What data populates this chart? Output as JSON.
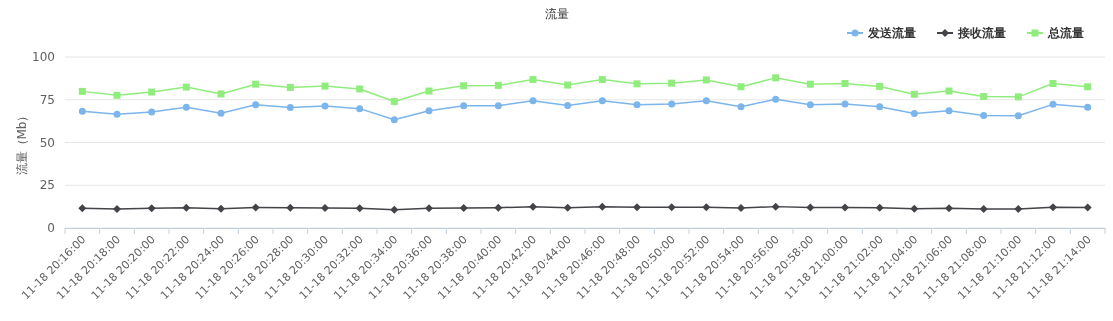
{
  "chart_data": {
    "type": "line",
    "title": "流量",
    "ylabel": "流量（Mb）",
    "categories": [
      "11-18 20:16:00",
      "11-18 20:18:00",
      "11-18 20:20:00",
      "11-18 20:22:00",
      "11-18 20:24:00",
      "11-18 20:26:00",
      "11-18 20:28:00",
      "11-18 20:30:00",
      "11-18 20:32:00",
      "11-18 20:34:00",
      "11-18 20:36:00",
      "11-18 20:38:00",
      "11-18 20:40:00",
      "11-18 20:42:00",
      "11-18 20:44:00",
      "11-18 20:46:00",
      "11-18 20:48:00",
      "11-18 20:50:00",
      "11-18 20:52:00",
      "11-18 20:54:00",
      "11-18 20:56:00",
      "11-18 20:58:00",
      "11-18 21:00:00",
      "11-18 21:02:00",
      "11-18 21:04:00",
      "11-18 21:06:00",
      "11-18 21:08:00",
      "11-18 21:10:00",
      "11-18 21:12:00",
      "11-18 21:14:00"
    ],
    "series": [
      {
        "name": "发送流量",
        "color": "#7cb5ec",
        "marker": "circle",
        "values": [
          68.3,
          66.5,
          67.9,
          70.6,
          67.1,
          72.1,
          70.4,
          71.3,
          69.8,
          63.3,
          68.6,
          71.5,
          71.5,
          74.4,
          71.7,
          74.4,
          72.1,
          72.5,
          74.4,
          70.9,
          75.3,
          72.1,
          72.5,
          70.9,
          66.9,
          68.6,
          65.8,
          65.6,
          72.3,
          70.6
        ]
      },
      {
        "name": "接收流量",
        "color": "#434348",
        "marker": "diamond",
        "values": [
          11.6,
          11.1,
          11.6,
          11.8,
          11.3,
          12.0,
          11.8,
          11.7,
          11.5,
          10.7,
          11.5,
          11.7,
          11.9,
          12.4,
          11.9,
          12.4,
          12.2,
          12.2,
          12.2,
          11.7,
          12.5,
          12.0,
          12.0,
          11.9,
          11.3,
          11.5,
          11.1,
          11.1,
          12.2,
          12.0
        ]
      },
      {
        "name": "总流量",
        "color": "#90ed7d",
        "marker": "square",
        "values": [
          79.9,
          77.6,
          79.5,
          82.4,
          78.4,
          84.1,
          82.2,
          83.0,
          81.3,
          74.0,
          80.1,
          83.2,
          83.4,
          86.8,
          83.6,
          86.8,
          84.3,
          84.7,
          86.6,
          82.6,
          87.8,
          84.1,
          84.5,
          82.8,
          78.2,
          80.1,
          76.9,
          76.7,
          84.5,
          82.6
        ]
      }
    ],
    "ylim": [
      0,
      100
    ],
    "yticks": [
      0,
      25,
      50,
      75,
      100
    ],
    "grid": "y",
    "legend": "top right"
  }
}
